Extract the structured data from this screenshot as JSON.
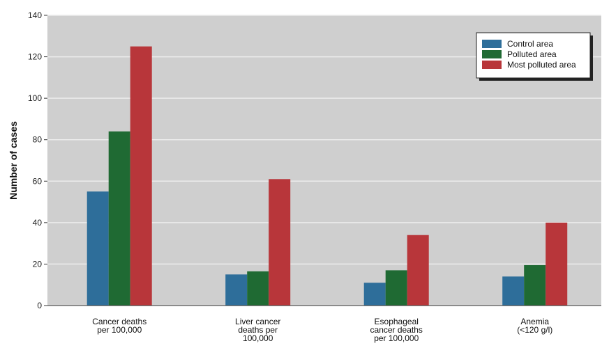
{
  "chart_data": {
    "type": "bar",
    "ylabel": "Number of cases",
    "ylim": [
      0,
      140
    ],
    "yticks": [
      0,
      20,
      40,
      60,
      80,
      100,
      120,
      140
    ],
    "grid": true,
    "legend_position": "top-right",
    "categories": [
      [
        "Cancer deaths",
        "per 100,000"
      ],
      [
        "Liver cancer",
        "deaths per",
        "100,000"
      ],
      [
        "Esophageal",
        "cancer deaths",
        "per 100,000"
      ],
      [
        "Anemia",
        "(<120 g/l)"
      ]
    ],
    "series": [
      {
        "name": "Control area",
        "color": "#2e6e9a",
        "values": [
          55,
          15,
          11,
          14
        ]
      },
      {
        "name": "Polluted area",
        "color": "#1f6a33",
        "values": [
          84,
          16.5,
          17,
          19.5
        ]
      },
      {
        "name": "Most polluted area",
        "color": "#b8363a",
        "values": [
          125,
          61,
          34,
          40
        ]
      }
    ],
    "colors": {
      "plot_background": "#cfcfcf",
      "grid": "#ececec"
    }
  }
}
